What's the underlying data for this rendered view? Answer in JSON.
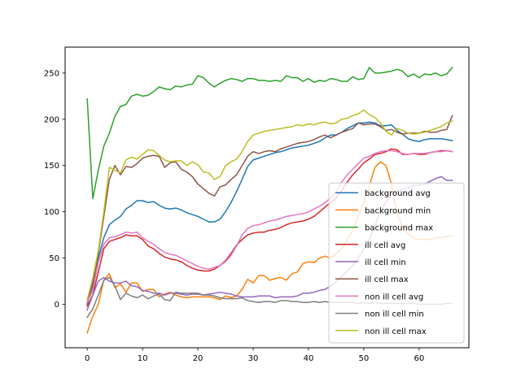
{
  "chart_data": {
    "type": "line",
    "title": "",
    "xlabel": "",
    "ylabel": "",
    "xlim": [
      -4,
      69
    ],
    "ylim": [
      -47,
      278
    ],
    "xticks": [
      0,
      10,
      20,
      30,
      40,
      50,
      60
    ],
    "yticks": [
      0,
      50,
      100,
      150,
      200,
      250
    ],
    "grid": false,
    "legend_position": "lower-right",
    "series": [
      {
        "name": "background avg",
        "color": "#1f77b4",
        "values": [
          0,
          25,
          50,
          72,
          86,
          91,
          95,
          103,
          107,
          112,
          112,
          110,
          111,
          107,
          104,
          103,
          104,
          102,
          99,
          97,
          95,
          92,
          89,
          89,
          92,
          100,
          110,
          122,
          135,
          149,
          156,
          158,
          160,
          162,
          164,
          165,
          167,
          169,
          170,
          171,
          172,
          174,
          176,
          180,
          183,
          183,
          186,
          190,
          193,
          196,
          196,
          197,
          196,
          193,
          193,
          194,
          188,
          184,
          179,
          177,
          176,
          178,
          179,
          179,
          179,
          178,
          177
        ]
      },
      {
        "name": "background min",
        "color": "#ff7f0e",
        "values": [
          -31,
          -13,
          0,
          26,
          33,
          18,
          22,
          13,
          23,
          23,
          14,
          16,
          16,
          8,
          11,
          13,
          10,
          8,
          7,
          8,
          8,
          8,
          8,
          7,
          5,
          9,
          7,
          9,
          16,
          27,
          23,
          31,
          31,
          26,
          28,
          29,
          26,
          33,
          35,
          44,
          46,
          45,
          50,
          52,
          50,
          55,
          60,
          70,
          80,
          96,
          110,
          128,
          148,
          154,
          150,
          130,
          98,
          84,
          76,
          72,
          70,
          70,
          70,
          72,
          72,
          73,
          74
        ]
      },
      {
        "name": "background max",
        "color": "#2ca02c",
        "values": [
          222,
          114,
          145,
          171,
          185,
          203,
          214,
          216,
          225,
          227,
          225,
          226,
          230,
          235,
          233,
          232,
          236,
          235,
          237,
          238,
          247,
          245,
          239,
          235,
          239,
          242,
          244,
          243,
          241,
          244,
          244,
          242,
          242,
          241,
          242,
          241,
          247,
          245,
          245,
          241,
          244,
          240,
          242,
          241,
          244,
          243,
          241,
          241,
          246,
          243,
          244,
          256,
          250,
          250,
          251,
          252,
          254,
          252,
          246,
          249,
          245,
          249,
          248,
          250,
          247,
          249,
          256
        ]
      },
      {
        "name": "ill cell avg",
        "color": "#d62728",
        "values": [
          -2,
          10,
          35,
          60,
          68,
          70,
          72,
          75,
          74,
          74,
          70,
          63,
          60,
          55,
          51,
          49,
          48,
          46,
          42,
          39,
          37,
          36,
          36,
          38,
          42,
          47,
          55,
          64,
          70,
          75,
          77,
          78,
          78,
          80,
          81,
          83,
          86,
          88,
          89,
          90,
          92,
          95,
          100,
          105,
          110,
          115,
          123,
          132,
          140,
          146,
          153,
          157,
          162,
          163,
          165,
          168,
          167,
          162,
          162,
          163,
          162,
          162,
          164,
          165,
          166,
          166,
          165
        ]
      },
      {
        "name": "ill cell min",
        "color": "#9467bd",
        "values": [
          -6,
          10,
          25,
          29,
          25,
          23,
          23,
          25,
          20,
          19,
          15,
          14,
          12,
          12,
          10,
          12,
          12,
          11,
          10,
          11,
          11,
          10,
          11,
          12,
          13,
          12,
          11,
          9,
          8,
          8,
          8,
          9,
          9,
          9,
          7,
          8,
          8,
          8,
          9,
          12,
          12,
          13,
          15,
          16,
          20,
          24,
          30,
          36,
          42,
          50,
          60,
          70,
          85,
          100,
          110,
          118,
          122,
          124,
          126,
          128,
          129,
          130,
          133,
          136,
          138,
          134,
          134
        ]
      },
      {
        "name": "ill cell max",
        "color": "#8c564b",
        "values": [
          2,
          20,
          55,
          95,
          135,
          150,
          140,
          149,
          148,
          152,
          158,
          160,
          161,
          160,
          148,
          153,
          154,
          146,
          143,
          138,
          130,
          125,
          120,
          117,
          127,
          129,
          135,
          140,
          150,
          160,
          165,
          163,
          165,
          166,
          165,
          168,
          170,
          172,
          174,
          175,
          176,
          178,
          181,
          183,
          180,
          183,
          186,
          188,
          190,
          196,
          194,
          195,
          195,
          192,
          188,
          189,
          186,
          184,
          185,
          185,
          185,
          187,
          186,
          186,
          188,
          189,
          204
        ]
      },
      {
        "name": "non ill cell avg",
        "color": "#e377c2",
        "values": [
          2,
          15,
          45,
          65,
          72,
          73,
          75,
          78,
          77,
          78,
          72,
          68,
          65,
          60,
          56,
          54,
          53,
          50,
          47,
          44,
          41,
          39,
          38,
          40,
          42,
          46,
          53,
          63,
          75,
          82,
          85,
          86,
          88,
          90,
          91,
          93,
          95,
          96,
          97,
          98,
          100,
          103,
          106,
          110,
          115,
          122,
          132,
          140,
          146,
          152,
          158,
          160,
          163,
          165,
          166,
          166,
          165,
          163,
          162,
          163,
          163,
          163,
          164,
          165,
          165,
          166,
          165
        ]
      },
      {
        "name": "non ill cell min",
        "color": "#7f7f7f",
        "values": [
          -14,
          -5,
          10,
          26,
          29,
          20,
          5,
          12,
          9,
          7,
          10,
          6,
          9,
          11,
          5,
          4,
          13,
          12,
          12,
          12,
          12,
          10,
          10,
          9,
          7,
          6,
          6,
          6,
          7,
          4,
          3,
          2,
          3,
          3,
          2,
          4,
          4,
          3,
          3,
          2,
          2,
          3,
          2,
          3,
          2,
          2,
          2,
          2,
          2,
          1,
          2,
          1,
          2,
          1,
          1,
          1,
          1,
          1,
          1,
          1,
          0,
          0,
          0,
          0,
          0,
          1,
          1
        ]
      },
      {
        "name": "non ill cell max",
        "color": "#bcbd22",
        "values": [
          5,
          28,
          58,
          100,
          148,
          145,
          142,
          156,
          159,
          157,
          162,
          167,
          166,
          161,
          156,
          154,
          155,
          155,
          150,
          154,
          151,
          143,
          142,
          135,
          138,
          150,
          154,
          157,
          165,
          176,
          183,
          185,
          187,
          188,
          189,
          190,
          191,
          192,
          194,
          193,
          195,
          194,
          196,
          197,
          195,
          196,
          200,
          201,
          204,
          206,
          210,
          205,
          202,
          196,
          187,
          183,
          190,
          188,
          185,
          184,
          185,
          186,
          188,
          190,
          192,
          196,
          198
        ]
      }
    ]
  }
}
